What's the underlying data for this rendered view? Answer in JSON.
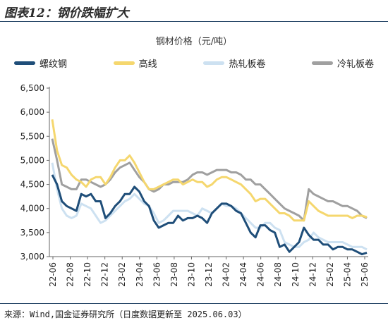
{
  "figure": {
    "title": "图表12：钢价跌幅扩大",
    "source": "来源：Wind,国金证券研究所（日度数据更新至 2025.06.03）"
  },
  "chart_data": {
    "type": "line",
    "title": "钢材价格（元/吨）",
    "xlabel": "",
    "ylabel": "",
    "ylim": [
      3000,
      6500
    ],
    "yticks": [
      "6,500",
      "6,000",
      "5,500",
      "5,000",
      "4,500",
      "4,000",
      "3,500",
      "3,000"
    ],
    "x_tick_labels": [
      "22-06",
      "22-08",
      "22-10",
      "22-12",
      "23-02",
      "23-04",
      "23-06",
      "23-08",
      "23-10",
      "23-12",
      "24-02",
      "24-04",
      "24-06",
      "24-08",
      "24-10",
      "24-12",
      "25-02",
      "25-04",
      "25-06"
    ],
    "x_start": "2022-06",
    "grid": false,
    "legend_position": "top",
    "series": [
      {
        "name": "螺纹钢",
        "color": "#1f4e79",
        "values": [
          4700,
          4500,
          4150,
          4050,
          4000,
          3950,
          4300,
          4250,
          4300,
          4150,
          4150,
          3800,
          3900,
          4050,
          4150,
          4300,
          4300,
          4450,
          4350,
          4150,
          4050,
          3750,
          3600,
          3650,
          3700,
          3700,
          3850,
          3750,
          3800,
          3800,
          3850,
          3800,
          3700,
          3900,
          4000,
          4100,
          4100,
          4050,
          3950,
          3900,
          3700,
          3500,
          3400,
          3650,
          3650,
          3550,
          3500,
          3200,
          3250,
          3100,
          3200,
          3300,
          3600,
          3450,
          3350,
          3350,
          3250,
          3250,
          3150,
          3200,
          3200,
          3150,
          3150,
          3100,
          3050,
          3080
        ]
      },
      {
        "name": "高线",
        "color": "#f5d76e",
        "values": [
          5850,
          5200,
          4900,
          4850,
          4700,
          4600,
          4550,
          4450,
          4600,
          4650,
          4650,
          4500,
          4650,
          4850,
          5000,
          5000,
          5100,
          4950,
          4750,
          4550,
          4400,
          4400,
          4450,
          4500,
          4550,
          4600,
          4600,
          4500,
          4550,
          4600,
          4550,
          4550,
          4450,
          4500,
          4600,
          4650,
          4650,
          4600,
          4550,
          4500,
          4400,
          4300,
          4150,
          4200,
          4200,
          4100,
          4000,
          3900,
          3900,
          3850,
          3750,
          3750,
          3750,
          4150,
          4050,
          3950,
          3900,
          3850,
          3850,
          3850,
          3850,
          3850,
          3800,
          3850,
          3850,
          3820
        ]
      },
      {
        "name": "热轧板卷",
        "color": "#cde1f1",
        "values": [
          4950,
          4400,
          4000,
          3850,
          3800,
          3850,
          4100,
          4050,
          4000,
          3850,
          3700,
          3750,
          3850,
          3950,
          4050,
          4150,
          4200,
          4300,
          4200,
          4100,
          4050,
          3900,
          3700,
          3750,
          3850,
          3950,
          3950,
          3950,
          3950,
          3900,
          3850,
          4000,
          3950,
          3900,
          4000,
          4100,
          4050,
          4050,
          4000,
          3900,
          3800,
          3700,
          3600,
          3600,
          3700,
          3700,
          3600,
          3550,
          3300,
          3250,
          3200,
          3200,
          3300,
          3350,
          3500,
          3400,
          3350,
          3300,
          3300,
          3300,
          3300,
          3250,
          3200,
          3200,
          3200,
          3150
        ]
      },
      {
        "name": "冷轧板卷",
        "color": "#a0a0a0",
        "values": [
          5450,
          5000,
          4500,
          4450,
          4400,
          4400,
          4600,
          4600,
          4550,
          4500,
          4450,
          4500,
          4600,
          4750,
          4850,
          4900,
          4950,
          4800,
          4650,
          4550,
          4400,
          4350,
          4400,
          4500,
          4500,
          4550,
          4550,
          4550,
          4600,
          4700,
          4750,
          4750,
          4700,
          4750,
          4800,
          4800,
          4800,
          4750,
          4750,
          4700,
          4600,
          4600,
          4500,
          4500,
          4400,
          4300,
          4200,
          4100,
          4000,
          3950,
          3900,
          3850,
          3750,
          4400,
          4300,
          4250,
          4200,
          4150,
          4150,
          4100,
          4050,
          4050,
          4000,
          3950,
          3850,
          3800
        ]
      }
    ]
  }
}
